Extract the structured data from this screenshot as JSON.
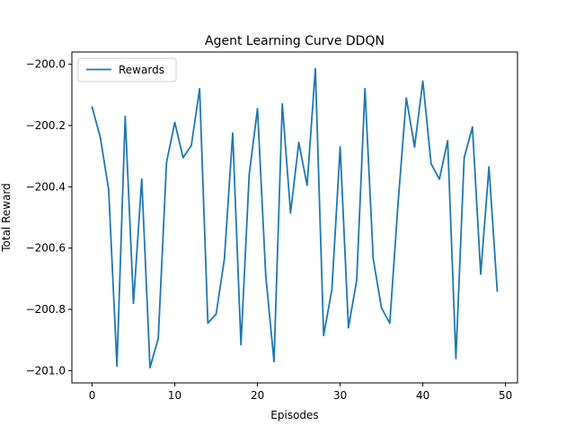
{
  "chart_data": {
    "type": "line",
    "title": "Agent Learning Curve DDQN",
    "xlabel": "Episodes",
    "ylabel": "Total Reward",
    "xlim": [
      -2.45,
      51.45
    ],
    "ylim": [
      -201.04,
      -199.96
    ],
    "xticks": [
      0,
      10,
      20,
      30,
      40,
      50
    ],
    "xtick_labels": [
      "0",
      "10",
      "20",
      "30",
      "40",
      "50"
    ],
    "yticks": [
      -201.0,
      -200.8,
      -200.6,
      -200.4,
      -200.2,
      -200.0
    ],
    "ytick_labels": [
      "−201.0",
      "−200.8",
      "−200.6",
      "−200.4",
      "−200.2",
      "−200.0"
    ],
    "grid": false,
    "legend": {
      "position": "top-left",
      "entries": [
        "Rewards"
      ]
    },
    "series": [
      {
        "name": "Rewards",
        "color": "#1f77b4",
        "x": [
          0,
          1,
          2,
          3,
          4,
          5,
          6,
          7,
          8,
          9,
          10,
          11,
          12,
          13,
          14,
          15,
          16,
          17,
          18,
          19,
          20,
          21,
          22,
          23,
          24,
          25,
          26,
          27,
          28,
          29,
          30,
          31,
          32,
          33,
          34,
          35,
          36,
          37,
          38,
          39,
          40,
          41,
          42,
          43,
          44,
          45,
          46,
          47,
          48,
          49
        ],
        "y": [
          -200.14,
          -200.24,
          -200.41,
          -200.985,
          -200.17,
          -200.78,
          -200.375,
          -200.99,
          -200.895,
          -200.32,
          -200.19,
          -200.305,
          -200.265,
          -200.08,
          -200.845,
          -200.815,
          -200.635,
          -200.225,
          -200.915,
          -200.36,
          -200.145,
          -200.69,
          -200.97,
          -200.13,
          -200.485,
          -200.255,
          -200.395,
          -200.015,
          -200.885,
          -200.735,
          -200.27,
          -200.86,
          -200.705,
          -200.08,
          -200.635,
          -200.795,
          -200.845,
          -200.455,
          -200.11,
          -200.27,
          -200.055,
          -200.325,
          -200.375,
          -200.25,
          -200.96,
          -200.305,
          -200.205,
          -200.685,
          -200.335,
          -200.74
        ]
      }
    ]
  }
}
